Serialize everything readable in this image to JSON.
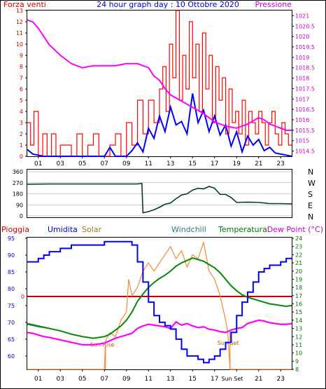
{
  "title": "24 hour graph day : 10 Ottobre 2020",
  "colors": {
    "wind": "#ff0000",
    "gust": "#0000ff",
    "pressure": "#ff00ff",
    "direction": "#003a3a",
    "rain": "#c00000",
    "humidity": "#0000ff",
    "solar": "#f4883a",
    "windchill": "#2e7a7a",
    "temperature": "#0a8a0a",
    "dewpoint": "#ff00ff",
    "grid": "#000000",
    "frame": "#000000",
    "left_axis": "#0000cc",
    "right_axis_top": "#cc00cc",
    "right_axis_bottom": "#007700"
  },
  "x_ticks": [
    "01",
    "03",
    "05",
    "07",
    "09",
    "11",
    "13",
    "15",
    "17",
    "19",
    "21",
    "23"
  ],
  "sun_labels": {
    "sunrise": "Sun Rise",
    "sunset": "Sun Set",
    "sunset_tick": "Sun Set"
  },
  "panels": {
    "wind": {
      "left_label": "Forza venti",
      "right_label": "Pressione"
    },
    "direction": {
      "compass": [
        "N",
        "W",
        "S",
        "E",
        "N"
      ]
    },
    "climate": {
      "labels": {
        "rain": "Pioggia",
        "humidity": "Umidita",
        "solar": "Solar",
        "windchill": "Windchill",
        "temperature": "Temperatura",
        "dewpoint": "Dew Point (°C)"
      }
    }
  },
  "chart_data": [
    {
      "type": "line",
      "title": "24 hour graph day : 10 Ottobre 2020",
      "ylabel": "Forza venti",
      "y2label": "Pressione",
      "xlim": [
        0,
        24
      ],
      "ylim": [
        0,
        13
      ],
      "y_ticks": [
        0,
        1,
        2,
        3,
        4,
        5,
        6,
        7,
        8,
        9,
        10,
        11,
        12,
        13
      ],
      "y2lim": [
        1014.25,
        1021.25
      ],
      "y2_ticks": [
        "1014.5",
        "1015",
        "1015.5",
        "1016",
        "1016.5",
        "1017",
        "1017.5",
        "1018",
        "1018.5",
        "1019",
        "1019.5",
        "1020",
        "1020.5",
        "1021"
      ],
      "grid": false,
      "series": [
        {
          "name": "Forza venti",
          "axis": "left",
          "x": [
            0,
            0.3,
            0.6,
            1,
            1.4,
            1.8,
            2.2,
            2.6,
            3,
            3.5,
            4,
            4.5,
            5,
            5.5,
            6,
            6.5,
            7,
            7.5,
            8,
            8.5,
            9,
            9.5,
            10,
            10.5,
            11,
            11.5,
            12,
            12.3,
            12.6,
            12.9,
            13.2,
            13.5,
            13.8,
            14.1,
            14.4,
            14.7,
            15,
            15.3,
            15.6,
            15.9,
            16.2,
            16.5,
            16.8,
            17.1,
            17.4,
            17.7,
            18,
            18.3,
            18.6,
            18.9,
            19.2,
            19.5,
            19.8,
            20.1,
            20.4,
            20.7,
            21,
            21.3,
            21.6,
            21.9,
            22.2,
            22.5,
            22.8,
            23.1,
            23.4,
            23.7,
            24
          ],
          "values": [
            3,
            1,
            4,
            0,
            2,
            0,
            2,
            0,
            1,
            1,
            0,
            2,
            0,
            1,
            2,
            0,
            0,
            1,
            2,
            0,
            3,
            1,
            5,
            2,
            5,
            3,
            6,
            8,
            4,
            10,
            7,
            13,
            5,
            9,
            6,
            12,
            7,
            10,
            4,
            11,
            6,
            9,
            3,
            8,
            5,
            7,
            2,
            6,
            3,
            4,
            2,
            5,
            1,
            4,
            3,
            2,
            4,
            3,
            1,
            3,
            4,
            2,
            1,
            3,
            2,
            1,
            1
          ]
        },
        {
          "name": "Raffica",
          "axis": "left",
          "x": [
            0,
            0.5,
            1,
            1.5,
            2,
            3,
            4,
            5,
            6,
            7,
            7.5,
            8,
            9,
            9.5,
            10,
            10.5,
            11,
            11.5,
            12,
            12.5,
            13,
            13.5,
            14,
            14.5,
            15,
            15.5,
            16,
            16.5,
            17,
            17.5,
            18,
            18.5,
            19,
            19.5,
            20,
            20.5,
            21,
            21.5,
            22,
            22.5,
            23,
            23.5,
            24
          ],
          "values": [
            0.6,
            0.2,
            0.1,
            0,
            0,
            0,
            0,
            0,
            0,
            0,
            0.8,
            0,
            0,
            0.5,
            1.2,
            0.4,
            2.5,
            1.6,
            3.6,
            2.2,
            4.4,
            2.8,
            3.1,
            2.0,
            5.6,
            3.0,
            4.1,
            2.2,
            3.6,
            1.9,
            2.8,
            0.9,
            2.2,
            0.4,
            1.8,
            1.0,
            1.5,
            0.5,
            0.8,
            0.3,
            0.2,
            0.1,
            0
          ]
        },
        {
          "name": "Pressione",
          "axis": "right",
          "x": [
            0,
            0.5,
            1,
            1.5,
            2,
            3,
            4,
            5,
            6,
            7,
            8,
            9,
            10,
            10.5,
            11,
            11.5,
            12,
            12.5,
            13,
            14,
            15,
            16,
            17,
            18,
            19,
            20,
            21,
            21.5,
            22,
            22.5,
            23,
            23.5,
            24
          ],
          "values": [
            1020.8,
            1020.7,
            1020.4,
            1020.0,
            1019.6,
            1019.1,
            1018.7,
            1018.5,
            1018.6,
            1018.6,
            1018.6,
            1018.7,
            1018.7,
            1018.6,
            1018.5,
            1018.1,
            1017.9,
            1017.5,
            1017.2,
            1016.9,
            1016.6,
            1016.3,
            1015.9,
            1015.7,
            1015.6,
            1015.8,
            1016.1,
            1016.0,
            1015.8,
            1015.7,
            1015.6,
            1015.5,
            1015.5
          ]
        }
      ]
    },
    {
      "type": "line",
      "title": "",
      "ylabel": "",
      "xlim": [
        0,
        24
      ],
      "ylim": [
        0,
        360
      ],
      "y_ticks": [
        0,
        90,
        180,
        270,
        360
      ],
      "grid": true,
      "series": [
        {
          "name": "Direzione",
          "x": [
            0,
            2,
            4,
            6,
            8,
            10,
            10.4,
            10.5,
            11,
            11.5,
            12,
            12.5,
            13,
            13.5,
            14,
            14.5,
            15,
            15.5,
            16,
            16.5,
            17,
            17.5,
            18,
            18.5,
            19,
            20,
            21,
            22,
            23,
            24
          ],
          "values": [
            258,
            260,
            260,
            260,
            260,
            260,
            265,
            25,
            35,
            50,
            70,
            95,
            105,
            140,
            170,
            180,
            210,
            225,
            220,
            240,
            225,
            175,
            175,
            150,
            110,
            112,
            110,
            100,
            100,
            98
          ]
        }
      ]
    },
    {
      "type": "line",
      "title": "",
      "ylabel": "Umidita",
      "y2label": "Dew Point (°C)",
      "xlim": [
        0,
        24
      ],
      "ylim": [
        56,
        95
      ],
      "y_ticks": [
        60,
        65,
        70,
        75,
        80,
        85,
        90,
        95
      ],
      "y2lim": [
        8,
        24
      ],
      "y2_ticks": [
        8,
        9,
        10,
        11,
        12,
        13,
        14,
        15,
        16,
        17,
        18,
        19,
        20,
        21,
        22,
        23,
        24
      ],
      "rain_zero_label": "0",
      "grid": false,
      "series": [
        {
          "name": "Umidita",
          "axis": "left",
          "x": [
            0,
            0.5,
            1,
            1.5,
            2,
            3,
            4,
            5,
            6,
            7,
            8,
            9,
            9.5,
            10,
            10.5,
            11,
            11.5,
            12,
            12.5,
            13,
            13.5,
            14,
            14.5,
            15,
            15.5,
            16,
            16.5,
            17,
            17.5,
            18,
            18.5,
            19,
            19.5,
            20,
            20.5,
            21,
            21.5,
            22,
            22.5,
            23,
            23.5,
            24
          ],
          "values": [
            88,
            88,
            89,
            90,
            91,
            92,
            93,
            93,
            93,
            94,
            94,
            94,
            93,
            88,
            82,
            76,
            72,
            70,
            69,
            68,
            65,
            62,
            60,
            60,
            59,
            58,
            59,
            60,
            62,
            64,
            67,
            72,
            76,
            79,
            82,
            85,
            86,
            87,
            87,
            88,
            89,
            89
          ]
        },
        {
          "name": "Solar",
          "axis": "right",
          "x": [
            0,
            6,
            7,
            7.1,
            7.5,
            8,
            8.5,
            9,
            9.2,
            9.5,
            10,
            10.5,
            11,
            11.5,
            12,
            12.5,
            13,
            13.5,
            14,
            14.5,
            15,
            15.5,
            16,
            16.5,
            17,
            17.5,
            18,
            18.2,
            18.4,
            24
          ],
          "values": [
            8,
            8,
            8,
            11.5,
            12.5,
            12,
            14,
            15,
            19,
            17,
            18,
            20,
            21,
            20,
            21,
            22,
            23,
            21.5,
            22.5,
            20.5,
            22,
            21.5,
            23.5,
            20,
            19,
            17,
            14,
            12.5,
            8,
            8
          ]
        },
        {
          "name": "Windchill",
          "axis": "right",
          "x": [
            0,
            1,
            2,
            3,
            4,
            5,
            6,
            7,
            7.5,
            8,
            8.5,
            9,
            9.5,
            10,
            10.5,
            11,
            11.5,
            12,
            12.5,
            13,
            13.5,
            14,
            14.5,
            15,
            15.5,
            16,
            16.5,
            17,
            17.5,
            18,
            18.5,
            19,
            19.5,
            20,
            20.5,
            21,
            21.5,
            22,
            22.5,
            23,
            23.5,
            24
          ],
          "values": [
            13.5,
            13.2,
            13.0,
            12.7,
            12.3,
            12.0,
            11.8,
            12.0,
            12.3,
            12.8,
            13.3,
            14.0,
            15.0,
            16.3,
            17.2,
            18.0,
            18.6,
            19.1,
            19.5,
            20.0,
            20.6,
            21.0,
            21.3,
            21.6,
            21.4,
            21.2,
            20.8,
            20.4,
            19.8,
            19.0,
            18.2,
            17.6,
            17.1,
            16.8,
            16.6,
            16.4,
            16.2,
            16.0,
            15.9,
            15.8,
            15.7,
            15.8
          ]
        },
        {
          "name": "Temperatura",
          "axis": "right",
          "x": [
            0,
            1,
            2,
            3,
            4,
            5,
            6,
            7,
            7.5,
            8,
            8.5,
            9,
            9.5,
            10,
            10.5,
            11,
            11.5,
            12,
            12.5,
            13,
            13.5,
            14,
            14.5,
            15,
            15.5,
            16,
            16.5,
            17,
            17.5,
            18,
            18.5,
            19,
            19.5,
            20,
            20.5,
            21,
            21.5,
            22,
            22.5,
            23,
            23.5,
            24
          ],
          "values": [
            13.6,
            13.3,
            13.0,
            12.7,
            12.3,
            12.0,
            11.8,
            12.0,
            12.3,
            12.8,
            13.3,
            14.0,
            15.0,
            16.3,
            17.2,
            18.0,
            18.6,
            19.1,
            19.5,
            20.0,
            20.6,
            21.0,
            21.3,
            21.6,
            21.4,
            21.2,
            20.8,
            20.4,
            19.8,
            19.0,
            18.2,
            17.6,
            17.1,
            16.8,
            16.6,
            16.4,
            16.2,
            16.0,
            15.9,
            15.8,
            15.7,
            15.8
          ]
        },
        {
          "name": "Dew Point",
          "axis": "right",
          "x": [
            0,
            0.5,
            1,
            1.5,
            2,
            3,
            4,
            5,
            6,
            7,
            7.5,
            8,
            8.5,
            9,
            9.5,
            10,
            10.5,
            11,
            11.5,
            12,
            12.5,
            13,
            13.5,
            14,
            14.5,
            15,
            15.5,
            16,
            16.5,
            17,
            17.5,
            18,
            18.5,
            19,
            19.5,
            20,
            20.5,
            21,
            21.5,
            22,
            22.5,
            23,
            23.5,
            24
          ],
          "values": [
            12.5,
            12.4,
            12.2,
            12.0,
            11.9,
            11.6,
            11.3,
            11.0,
            11.0,
            11.2,
            11.5,
            11.8,
            12.0,
            12.2,
            12.4,
            13.0,
            13.3,
            13.5,
            13.4,
            13.3,
            13.2,
            13.0,
            13.8,
            13.4,
            13.6,
            13.3,
            13.1,
            13.2,
            12.9,
            12.8,
            12.6,
            12.5,
            12.8,
            13.0,
            13.1,
            13.6,
            13.8,
            14.0,
            13.9,
            13.7,
            13.6,
            13.5,
            13.5,
            13.6
          ]
        }
      ]
    }
  ]
}
